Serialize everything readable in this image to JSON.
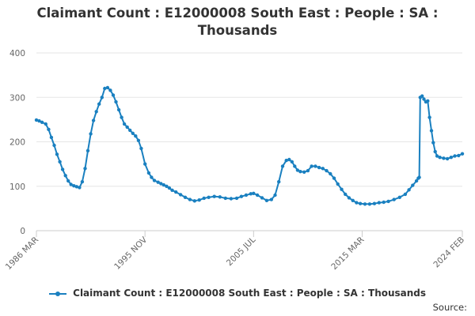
{
  "chart_data": {
    "type": "line",
    "title_lines": [
      "Claimant Count : E12000008 South East : People : SA :",
      "Thousands"
    ],
    "xlabel": "",
    "ylabel": "",
    "ylim": [
      0,
      400
    ],
    "y_ticks": [
      0,
      100,
      200,
      300,
      400
    ],
    "x_tick_labels": [
      "1986 MAR",
      "1995 NOV",
      "2005 JUL",
      "2015 MAR",
      "2024 FEB"
    ],
    "x_tick_dates": [
      "1986-03",
      "1995-11",
      "2005-07",
      "2015-03",
      "2024-02"
    ],
    "x_range": [
      "1986-03",
      "2024-02"
    ],
    "grid": "horizontal",
    "legend_position": "bottom",
    "line_color": "#1a80c0",
    "series": [
      {
        "name": "Claimant Count : E12000008 South East : People : SA : Thousands",
        "x": [
          "1986-03",
          "1986-06",
          "1986-09",
          "1987-01",
          "1987-04",
          "1987-07",
          "1987-10",
          "1988-01",
          "1988-04",
          "1988-07",
          "1988-10",
          "1989-01",
          "1989-04",
          "1989-07",
          "1989-10",
          "1990-01",
          "1990-04",
          "1990-07",
          "1990-10",
          "1991-01",
          "1991-04",
          "1991-07",
          "1991-10",
          "1992-01",
          "1992-04",
          "1992-07",
          "1992-10",
          "1993-01",
          "1993-04",
          "1993-07",
          "1993-10",
          "1994-01",
          "1994-04",
          "1994-07",
          "1994-10",
          "1995-01",
          "1995-04",
          "1995-07",
          "1995-11",
          "1996-03",
          "1996-06",
          "1996-09",
          "1997-01",
          "1997-04",
          "1997-07",
          "1997-10",
          "1998-01",
          "1998-04",
          "1998-08",
          "1999-01",
          "1999-06",
          "1999-11",
          "2000-04",
          "2000-09",
          "2001-02",
          "2001-07",
          "2002-01",
          "2002-07",
          "2003-01",
          "2003-07",
          "2004-01",
          "2004-06",
          "2004-11",
          "2005-04",
          "2005-07",
          "2005-11",
          "2006-04",
          "2006-09",
          "2007-02",
          "2007-06",
          "2007-10",
          "2008-02",
          "2008-06",
          "2008-09",
          "2008-12",
          "2009-03",
          "2009-06",
          "2009-09",
          "2010-01",
          "2010-05",
          "2010-09",
          "2011-01",
          "2011-05",
          "2011-09",
          "2012-01",
          "2012-05",
          "2012-09",
          "2013-01",
          "2013-05",
          "2013-09",
          "2014-01",
          "2014-05",
          "2014-09",
          "2015-01",
          "2015-06",
          "2015-11",
          "2016-04",
          "2016-09",
          "2017-02",
          "2017-07",
          "2018-01",
          "2018-07",
          "2019-01",
          "2019-05",
          "2019-09",
          "2020-01",
          "2020-03",
          "2020-04",
          "2020-05",
          "2020-07",
          "2020-09",
          "2020-11",
          "2021-01",
          "2021-03",
          "2021-05",
          "2021-07",
          "2021-09",
          "2021-11",
          "2022-02",
          "2022-06",
          "2022-10",
          "2023-02",
          "2023-06",
          "2023-10",
          "2024-02"
        ],
        "values": [
          249,
          247,
          244,
          240,
          228,
          210,
          192,
          172,
          155,
          138,
          124,
          112,
          104,
          101,
          99,
          97,
          110,
          140,
          180,
          218,
          248,
          268,
          285,
          300,
          320,
          322,
          316,
          305,
          290,
          272,
          255,
          240,
          233,
          226,
          219,
          213,
          203,
          185,
          150,
          130,
          120,
          113,
          109,
          106,
          103,
          100,
          96,
          91,
          87,
          81,
          75,
          70,
          67,
          69,
          73,
          75,
          77,
          76,
          73,
          72,
          73,
          77,
          80,
          83,
          84,
          80,
          74,
          68,
          70,
          80,
          110,
          145,
          158,
          160,
          155,
          145,
          136,
          133,
          132,
          135,
          145,
          145,
          142,
          140,
          135,
          128,
          118,
          105,
          93,
          82,
          74,
          68,
          63,
          61,
          60,
          60,
          61,
          63,
          64,
          66,
          70,
          75,
          82,
          92,
          102,
          112,
          118,
          120,
          300,
          303,
          296,
          290,
          292,
          255,
          225,
          198,
          178,
          168,
          165,
          163,
          162,
          165,
          168,
          169,
          173
        ]
      }
    ]
  },
  "legend_label": "Claimant Count : E12000008 South East : People : SA : Thousands",
  "source_label": "Source:"
}
